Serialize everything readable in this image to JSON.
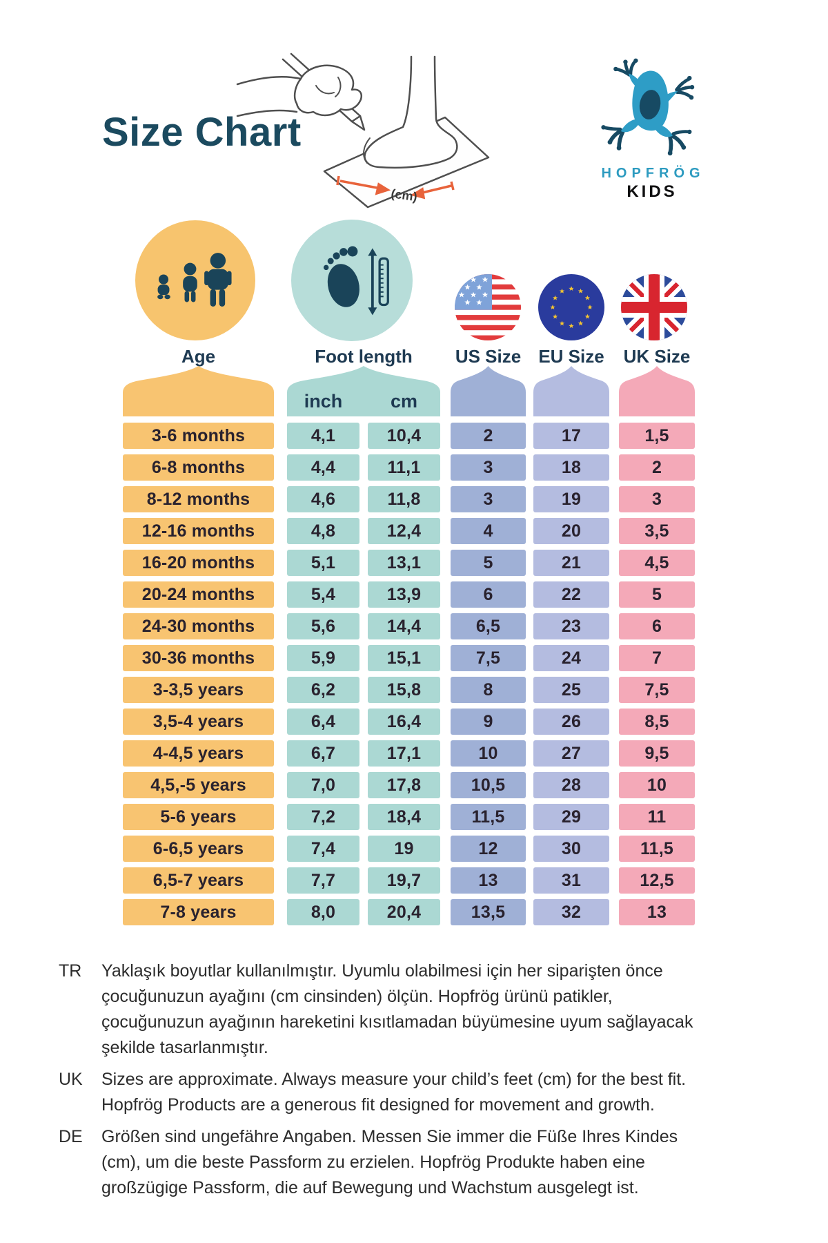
{
  "header": {
    "title": "Size Chart",
    "brand": "HOPFRÖG",
    "brand_sub": "KIDS",
    "illustration_cm_label": "(cm)"
  },
  "legend": {
    "age_label": "Age",
    "foot_label": "Foot length",
    "us_label": "US Size",
    "eu_label": "EU Size",
    "uk_label": "UK Size",
    "inch_unit": "inch",
    "cm_unit": "cm"
  },
  "chart_data": {
    "type": "table",
    "columns": [
      "Age",
      "Foot length (inch)",
      "Foot length (cm)",
      "US Size",
      "EU Size",
      "UK Size"
    ],
    "rows": [
      {
        "age": "3-6 months",
        "inch": "4,1",
        "cm": "10,4",
        "us": "2",
        "eu": "17",
        "uk": "1,5"
      },
      {
        "age": "6-8 months",
        "inch": "4,4",
        "cm": "11,1",
        "us": "3",
        "eu": "18",
        "uk": "2"
      },
      {
        "age": "8-12 months",
        "inch": "4,6",
        "cm": "11,8",
        "us": "3",
        "eu": "19",
        "uk": "3"
      },
      {
        "age": "12-16 months",
        "inch": "4,8",
        "cm": "12,4",
        "us": "4",
        "eu": "20",
        "uk": "3,5"
      },
      {
        "age": "16-20 months",
        "inch": "5,1",
        "cm": "13,1",
        "us": "5",
        "eu": "21",
        "uk": "4,5"
      },
      {
        "age": "20-24 months",
        "inch": "5,4",
        "cm": "13,9",
        "us": "6",
        "eu": "22",
        "uk": "5"
      },
      {
        "age": "24-30 months",
        "inch": "5,6",
        "cm": "14,4",
        "us": "6,5",
        "eu": "23",
        "uk": "6"
      },
      {
        "age": "30-36 months",
        "inch": "5,9",
        "cm": "15,1",
        "us": "7,5",
        "eu": "24",
        "uk": "7"
      },
      {
        "age": "3-3,5 years",
        "inch": "6,2",
        "cm": "15,8",
        "us": "8",
        "eu": "25",
        "uk": "7,5"
      },
      {
        "age": "3,5-4 years",
        "inch": "6,4",
        "cm": "16,4",
        "us": "9",
        "eu": "26",
        "uk": "8,5"
      },
      {
        "age": "4-4,5 years",
        "inch": "6,7",
        "cm": "17,1",
        "us": "10",
        "eu": "27",
        "uk": "9,5"
      },
      {
        "age": "4,5,-5 years",
        "inch": "7,0",
        "cm": "17,8",
        "us": "10,5",
        "eu": "28",
        "uk": "10"
      },
      {
        "age": "5-6 years",
        "inch": "7,2",
        "cm": "18,4",
        "us": "11,5",
        "eu": "29",
        "uk": "11"
      },
      {
        "age": "6-6,5 years",
        "inch": "7,4",
        "cm": "19",
        "us": "12",
        "eu": "30",
        "uk": "11,5"
      },
      {
        "age": "6,5-7 years",
        "inch": "7,7",
        "cm": "19,7",
        "us": "13",
        "eu": "31",
        "uk": "12,5"
      },
      {
        "age": "7-8 years",
        "inch": "8,0",
        "cm": "20,4",
        "us": "13,5",
        "eu": "32",
        "uk": "13"
      }
    ]
  },
  "notes": [
    {
      "lang": "TR",
      "text": "Yaklaşık boyutlar kullanılmıştır. Uyumlu olabilmesi için her siparişten önce çocuğunuzun ayağını (cm cinsinden) ölçün. Hopfrög ürünü patikler, çocuğunuzun ayağının hareketini kısıtlamadan büyümesine uyum sağlayacak şekilde tasarlanmıştır."
    },
    {
      "lang": "UK",
      "text": "Sizes are approximate. Always measure your child’s feet (cm) for the best fit. Hopfrög Products are a generous fit designed for movement and growth."
    },
    {
      "lang": "DE",
      "text": "Größen sind ungefähre Angaben. Messen Sie immer die Füße Ihres Kindes (cm), um die beste Passform zu erzielen. Hopfrög Produkte haben eine großzügige Passform, die auf Bewegung und Wachstum ausgelegt ist."
    }
  ],
  "colors": {
    "title": "#1B4A5F",
    "header_label": "#1E3A52",
    "age_column": "#F8C471",
    "foot_column": "#ABD8D3",
    "us_column": "#9FB0D6",
    "eu_column": "#B4BCE0",
    "uk_column": "#F4A9B8",
    "icon_navy": "#1A4459",
    "brand_blue": "#2D9BC0",
    "accent_orange": "#E8633B"
  }
}
